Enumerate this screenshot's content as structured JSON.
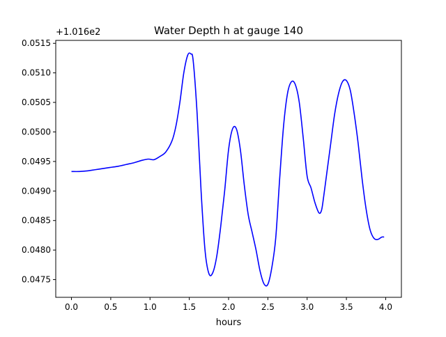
{
  "chart_data": {
    "type": "line",
    "title": "Water Depth h at gauge 140",
    "xlabel": "hours",
    "ylabel": "",
    "offset_label": "+1.016e2",
    "xlim": [
      -0.2,
      4.2
    ],
    "ylim": [
      0.0472,
      0.05155
    ],
    "xticks": [
      0.0,
      0.5,
      1.0,
      1.5,
      2.0,
      2.5,
      3.0,
      3.5,
      4.0
    ],
    "xtick_labels": [
      "0.0",
      "0.5",
      "1.0",
      "1.5",
      "2.0",
      "2.5",
      "3.0",
      "3.5",
      "4.0"
    ],
    "yticks": [
      0.0475,
      0.048,
      0.0485,
      0.049,
      0.0495,
      0.05,
      0.0505,
      0.051,
      0.0515
    ],
    "ytick_labels": [
      "0.0475",
      "0.0480",
      "0.0485",
      "0.0490",
      "0.0495",
      "0.0500",
      "0.0505",
      "0.0510",
      "0.0515"
    ],
    "grid": false,
    "series": [
      {
        "color": "#0000ff",
        "x": [
          0.0,
          0.1,
          0.2,
          0.3,
          0.4,
          0.5,
          0.6,
          0.7,
          0.8,
          0.9,
          0.98,
          1.05,
          1.12,
          1.2,
          1.28,
          1.33,
          1.38,
          1.43,
          1.48,
          1.52,
          1.55,
          1.6,
          1.65,
          1.7,
          1.75,
          1.8,
          1.85,
          1.9,
          1.95,
          2.0,
          2.05,
          2.1,
          2.15,
          2.2,
          2.25,
          2.3,
          2.35,
          2.4,
          2.45,
          2.5,
          2.55,
          2.6,
          2.65,
          2.7,
          2.75,
          2.8,
          2.85,
          2.9,
          2.95,
          3.0,
          3.05,
          3.1,
          3.15,
          3.18,
          3.2,
          3.25,
          3.3,
          3.35,
          3.4,
          3.45,
          3.5,
          3.55,
          3.6,
          3.65,
          3.7,
          3.75,
          3.8,
          3.85,
          3.9,
          3.95,
          3.98
        ],
        "y": [
          0.04933,
          0.04933,
          0.04934,
          0.04936,
          0.04938,
          0.0494,
          0.04942,
          0.04945,
          0.04948,
          0.04952,
          0.04954,
          0.04953,
          0.04958,
          0.04966,
          0.04985,
          0.0501,
          0.0505,
          0.051,
          0.0513,
          0.05132,
          0.0512,
          0.0503,
          0.049,
          0.048,
          0.0476,
          0.04762,
          0.0479,
          0.0484,
          0.049,
          0.0497,
          0.05005,
          0.05005,
          0.0497,
          0.0491,
          0.0486,
          0.0483,
          0.048,
          0.04765,
          0.04743,
          0.04742,
          0.0477,
          0.0482,
          0.0492,
          0.0501,
          0.05065,
          0.05085,
          0.0508,
          0.0505,
          0.0499,
          0.04925,
          0.04905,
          0.0488,
          0.04863,
          0.04866,
          0.0488,
          0.0493,
          0.0498,
          0.0503,
          0.05065,
          0.05085,
          0.05087,
          0.0507,
          0.0503,
          0.0498,
          0.0492,
          0.0487,
          0.04835,
          0.0482,
          0.04818,
          0.04822,
          0.04822
        ]
      }
    ]
  }
}
